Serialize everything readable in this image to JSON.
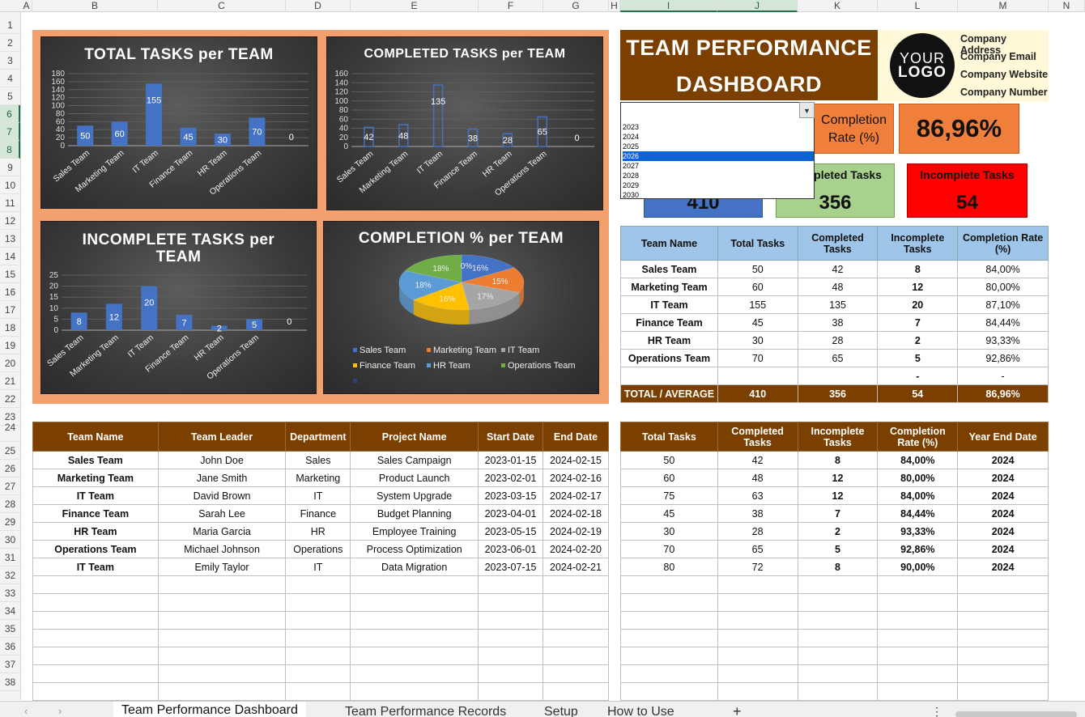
{
  "columns": [
    "A",
    "B",
    "C",
    "D",
    "E",
    "F",
    "G",
    "H",
    "I",
    "J",
    "K",
    "L",
    "M",
    "N"
  ],
  "rows": [
    "1",
    "2",
    "3",
    "4",
    "5",
    "6",
    "7",
    "8",
    "9",
    "10",
    "11",
    "12",
    "13",
    "14",
    "15",
    "16",
    "17",
    "18",
    "19",
    "20",
    "21",
    "22",
    "23",
    "24",
    "25",
    "26",
    "27",
    "28",
    "29",
    "30",
    "31",
    "32",
    "33",
    "34",
    "35",
    "36",
    "37",
    "38"
  ],
  "dashboard": {
    "title_line1": "TEAM PERFORMANCE",
    "title_line2": "DASHBOARD"
  },
  "company": {
    "address": "Company Address",
    "email": "Company Email",
    "website": "Company Website",
    "number": "Company Number",
    "logo_line1": "YOUR",
    "logo_line2": "LOGO"
  },
  "kpis": {
    "completion_label": "Completion Rate (%)",
    "completion_value": "86,96%",
    "total_value": "410",
    "completed_label": "Completed Tasks",
    "completed_value": "356",
    "incomplete_label": "Incomplete Tasks",
    "incomplete_value": "54"
  },
  "year_dropdown": {
    "options": [
      "2023",
      "2024",
      "2025",
      "2026",
      "2027",
      "2028",
      "2029",
      "2030"
    ],
    "highlighted": "2026"
  },
  "summary_table": {
    "headers": [
      "Team Name",
      "Total Tasks",
      "Completed Tasks",
      "Incomplete Tasks",
      "Completion Rate (%)"
    ],
    "rows": [
      [
        "Sales Team",
        "50",
        "42",
        "8",
        "84,00%"
      ],
      [
        "Marketing Team",
        "60",
        "48",
        "12",
        "80,00%"
      ],
      [
        "IT Team",
        "155",
        "135",
        "20",
        "87,10%"
      ],
      [
        "Finance Team",
        "45",
        "38",
        "7",
        "84,44%"
      ],
      [
        "HR Team",
        "30",
        "28",
        "2",
        "93,33%"
      ],
      [
        "Operations Team",
        "70",
        "65",
        "5",
        "92,86%"
      ],
      [
        "",
        "",
        "",
        "-",
        "-"
      ]
    ],
    "total": [
      "TOTAL / AVERAGE",
      "410",
      "356",
      "54",
      "86,96%"
    ]
  },
  "records_table": {
    "headers": [
      "Team Name",
      "Team Leader",
      "Department",
      "Project Name",
      "Start Date",
      "End Date"
    ],
    "rows": [
      [
        "Sales Team",
        "John Doe",
        "Sales",
        "Sales Campaign",
        "2023-01-15",
        "2024-02-15"
      ],
      [
        "Marketing Team",
        "Jane Smith",
        "Marketing",
        "Product Launch",
        "2023-02-01",
        "2024-02-16"
      ],
      [
        "IT Team",
        "David Brown",
        "IT",
        "System Upgrade",
        "2023-03-15",
        "2024-02-17"
      ],
      [
        "Finance Team",
        "Sarah Lee",
        "Finance",
        "Budget Planning",
        "2023-04-01",
        "2024-02-18"
      ],
      [
        "HR Team",
        "Maria Garcia",
        "HR",
        "Employee Training",
        "2023-05-15",
        "2024-02-19"
      ],
      [
        "Operations Team",
        "Michael Johnson",
        "Operations",
        "Process Optimization",
        "2023-06-01",
        "2024-02-20"
      ],
      [
        "IT Team",
        "Emily Taylor",
        "IT",
        "Data Migration",
        "2023-07-15",
        "2024-02-21"
      ]
    ],
    "empty_rows": 7
  },
  "calc_table": {
    "headers": [
      "Total Tasks",
      "Completed Tasks",
      "Incomplete Tasks",
      "Completion Rate (%)",
      "Year End Date"
    ],
    "rows": [
      [
        "50",
        "42",
        "8",
        "84,00%",
        "2024"
      ],
      [
        "60",
        "48",
        "12",
        "80,00%",
        "2024"
      ],
      [
        "75",
        "63",
        "12",
        "84,00%",
        "2024"
      ],
      [
        "45",
        "38",
        "7",
        "84,44%",
        "2024"
      ],
      [
        "30",
        "28",
        "2",
        "93,33%",
        "2024"
      ],
      [
        "70",
        "65",
        "5",
        "92,86%",
        "2024"
      ],
      [
        "80",
        "72",
        "8",
        "90,00%",
        "2024"
      ]
    ],
    "empty_rows": 7
  },
  "sheet_tabs": [
    "Team Performance Dashboard",
    "Team Performance Records",
    "Setup",
    "How to Use"
  ],
  "chart_data": [
    {
      "type": "bar",
      "title": "TOTAL TASKS per TEAM",
      "categories": [
        "Sales Team",
        "Marketing Team",
        "IT Team",
        "Finance Team",
        "HR Team",
        "Operations Team",
        ""
      ],
      "values": [
        50,
        60,
        155,
        45,
        30,
        70,
        0
      ],
      "ylim": [
        0,
        180
      ],
      "yticks": [
        0,
        20,
        40,
        60,
        80,
        100,
        120,
        140,
        160,
        180
      ],
      "color": "#4472c4"
    },
    {
      "type": "bar",
      "title": "COMPLETED TASKS per TEAM",
      "categories": [
        "Sales Team",
        "Marketing Team",
        "IT Team",
        "Finance Team",
        "HR Team",
        "Operations Team",
        ""
      ],
      "values": [
        42,
        48,
        135,
        38,
        28,
        65,
        0
      ],
      "ylim": [
        0,
        160
      ],
      "yticks": [
        0,
        20,
        40,
        60,
        80,
        100,
        120,
        140,
        160
      ],
      "color": "#4472c4"
    },
    {
      "type": "bar",
      "title": "INCOMPLETE TASKS per TEAM",
      "categories": [
        "Sales Team",
        "Marketing Team",
        "IT Team",
        "Finance Team",
        "HR Team",
        "Operations Team",
        ""
      ],
      "values": [
        8,
        12,
        20,
        7,
        2,
        5,
        0
      ],
      "ylim": [
        0,
        25
      ],
      "yticks": [
        0,
        5,
        10,
        15,
        20,
        25
      ],
      "color": "#4472c4"
    },
    {
      "type": "pie",
      "title": "COMPLETION % per TEAM",
      "categories": [
        "Sales Team",
        "Marketing Team",
        "IT Team",
        "Finance Team",
        "HR Team",
        "Operations Team",
        ""
      ],
      "values": [
        16,
        15,
        17,
        16,
        18,
        18,
        0
      ],
      "labels": [
        "16%",
        "15%",
        "17%",
        "16%",
        "18%",
        "18%",
        "0%"
      ],
      "colors": [
        "#4472c4",
        "#ed7d31",
        "#a5a5a5",
        "#ffc000",
        "#5b9bd5",
        "#70ad47",
        "#264478"
      ],
      "legend": "bottom"
    }
  ]
}
